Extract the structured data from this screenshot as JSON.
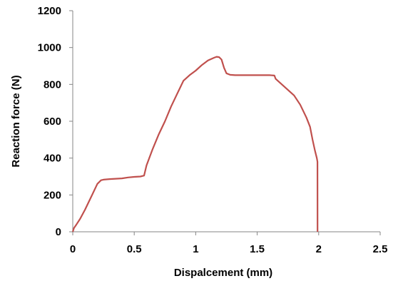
{
  "chart_data": {
    "type": "line",
    "title": "",
    "xlabel": "Dispalcement (mm)",
    "ylabel": "Reaction force (N)",
    "xlim": [
      0,
      2.5
    ],
    "ylim": [
      0,
      1200
    ],
    "x_ticks": [
      0,
      0.5,
      1,
      1.5,
      2,
      2.5
    ],
    "x_tick_labels": [
      "0",
      "0.5",
      "1",
      "1.5",
      "2",
      "2.5"
    ],
    "y_ticks": [
      0,
      200,
      400,
      600,
      800,
      1000,
      1200
    ],
    "y_tick_labels": [
      "0",
      "200",
      "400",
      "600",
      "800",
      "1000",
      "1200"
    ],
    "grid": false,
    "legend": "none",
    "series": [
      {
        "color": "#c0504d",
        "x": [
          0,
          0.01,
          0.03,
          0.06,
          0.1,
          0.15,
          0.2,
          0.23,
          0.25,
          0.3,
          0.35,
          0.4,
          0.45,
          0.5,
          0.55,
          0.58,
          0.6,
          0.65,
          0.7,
          0.75,
          0.8,
          0.85,
          0.9,
          0.95,
          1.0,
          1.05,
          1.1,
          1.15,
          1.17,
          1.19,
          1.21,
          1.23,
          1.25,
          1.28,
          1.32,
          1.4,
          1.5,
          1.6,
          1.64,
          1.65,
          1.7,
          1.75,
          1.8,
          1.85,
          1.9,
          1.93,
          1.95,
          1.97,
          1.985,
          1.99,
          1.991
        ],
        "y": [
          0,
          20,
          40,
          70,
          120,
          190,
          260,
          280,
          283,
          286,
          288,
          290,
          295,
          298,
          300,
          305,
          360,
          450,
          530,
          600,
          680,
          750,
          820,
          850,
          875,
          905,
          930,
          945,
          950,
          948,
          935,
          890,
          860,
          852,
          850,
          850,
          850,
          850,
          848,
          830,
          800,
          770,
          740,
          690,
          620,
          570,
          500,
          440,
          400,
          380,
          0
        ]
      }
    ]
  }
}
